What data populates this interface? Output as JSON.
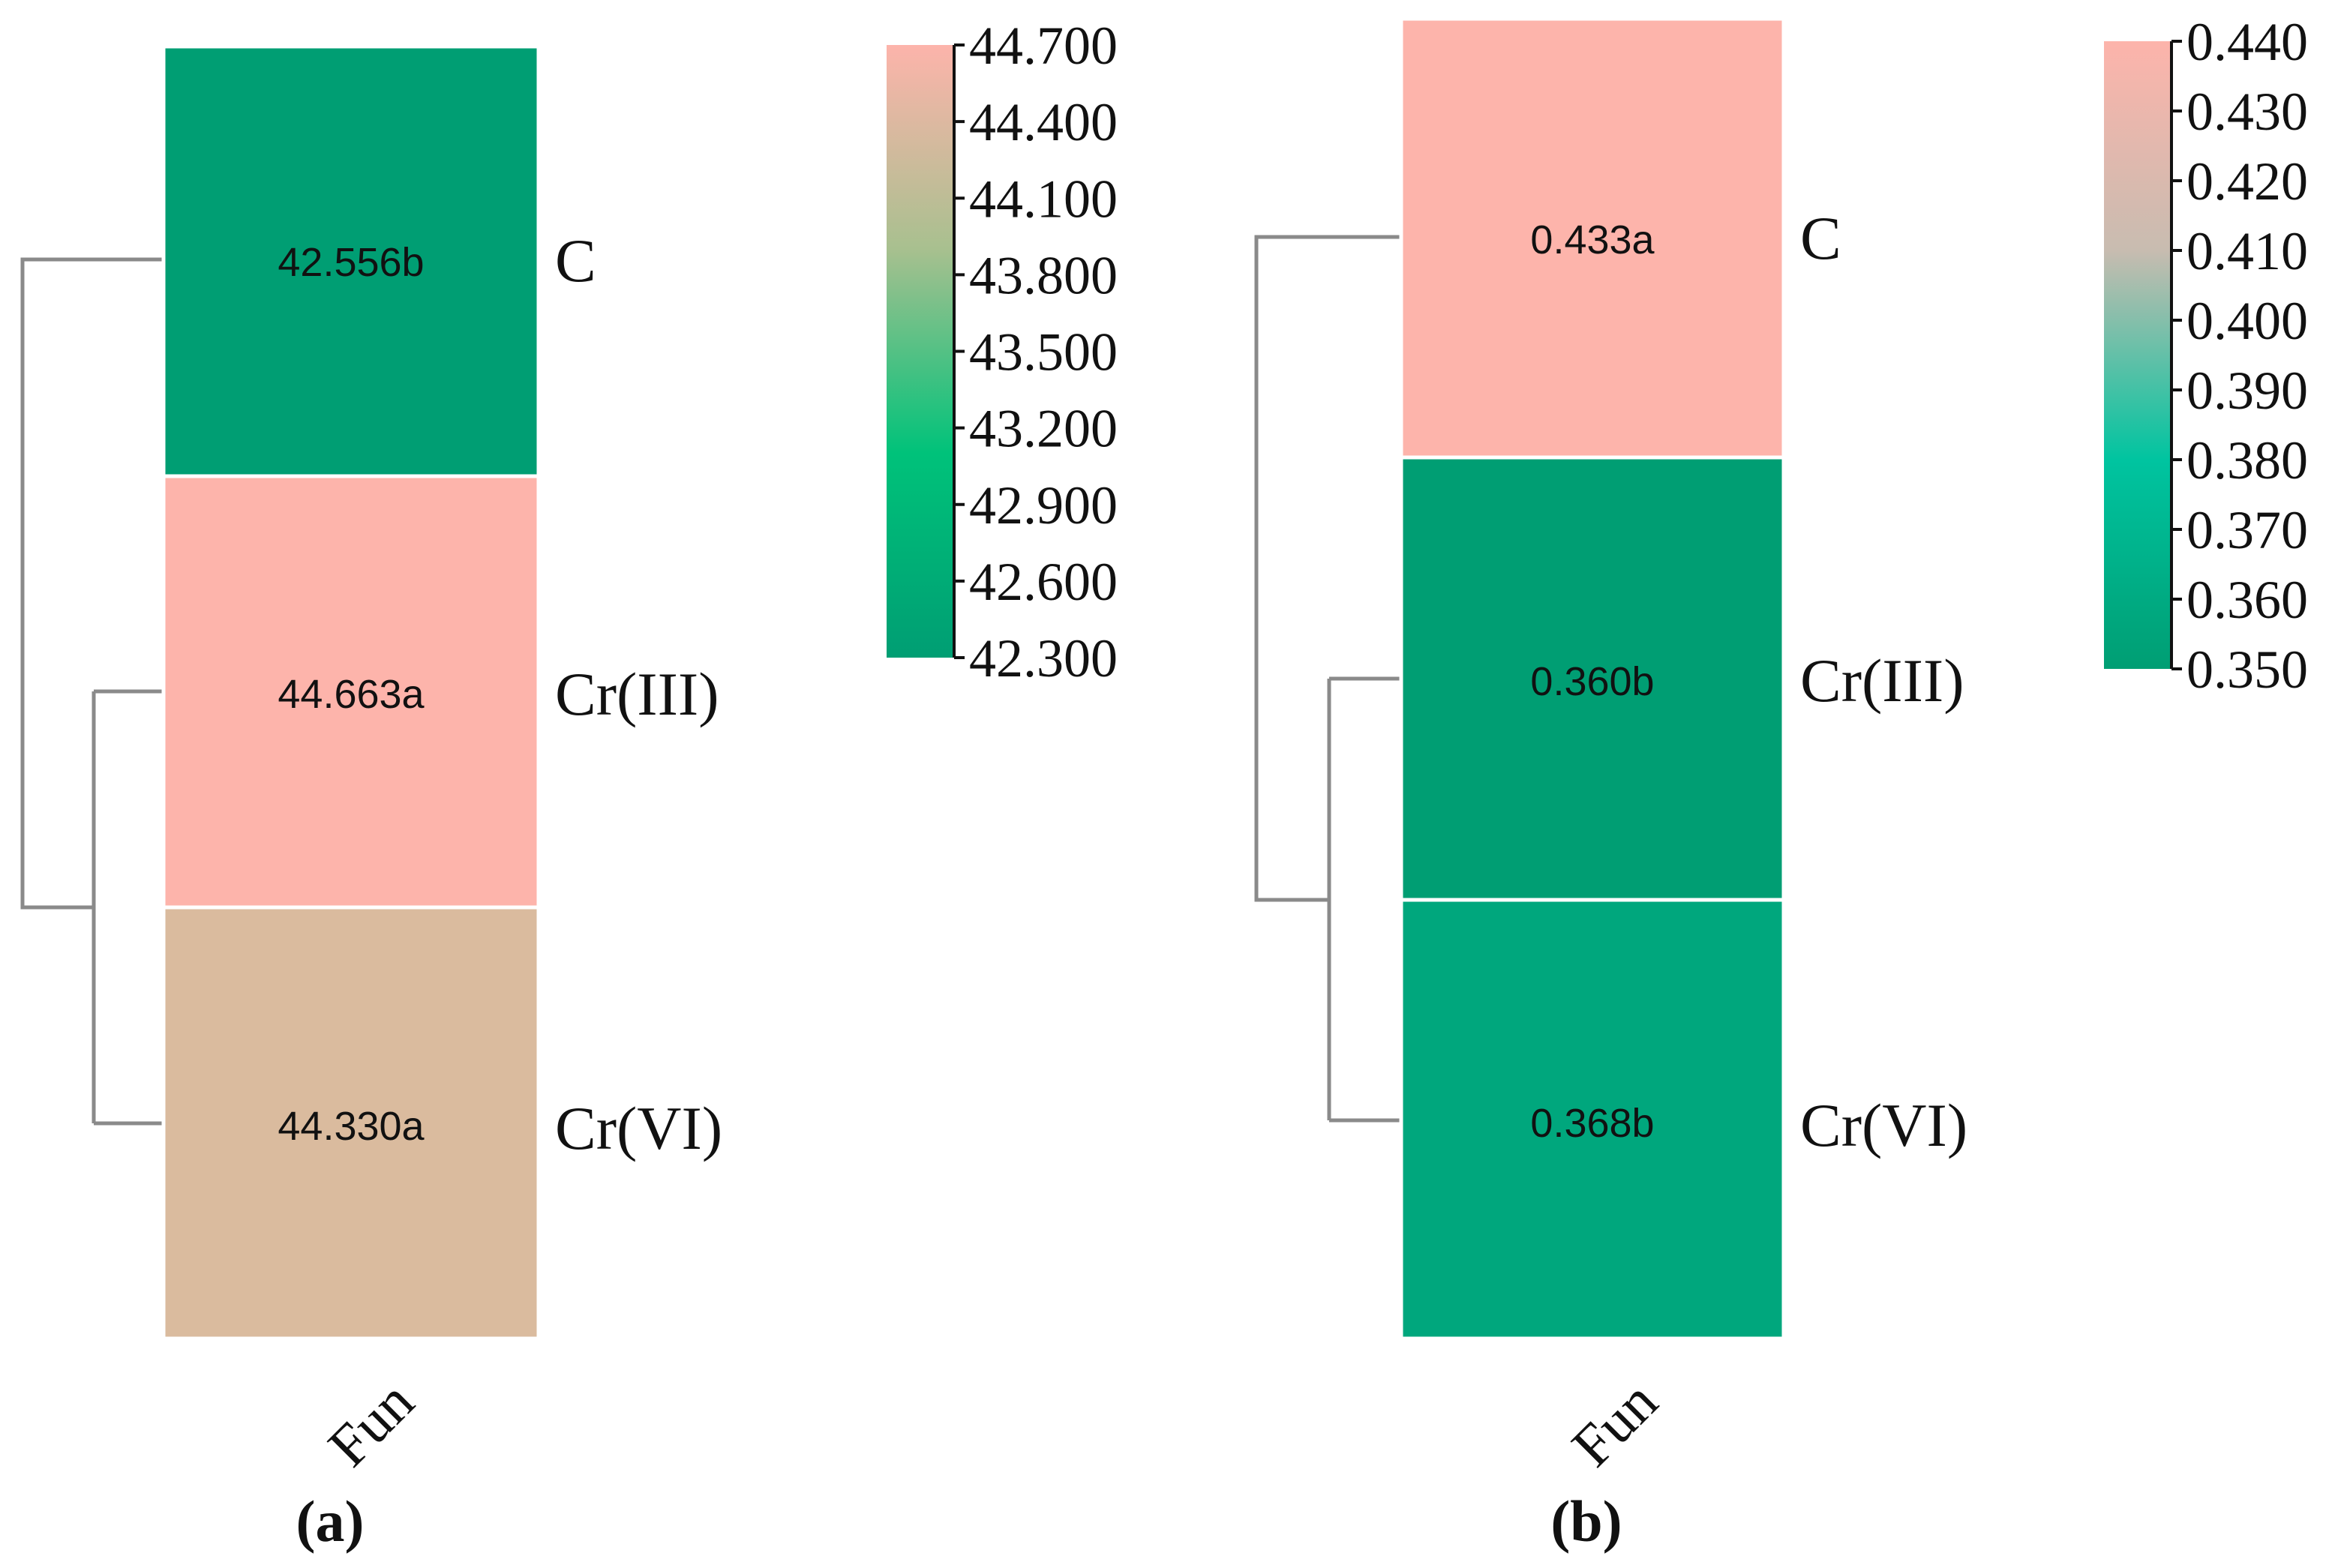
{
  "chart_data": [
    {
      "type": "heatmap",
      "panel_label": "(a)",
      "column_label": "Fun",
      "rows": [
        {
          "label": "C",
          "value": 42.556,
          "annotation": "42.556b",
          "color": "#009E73"
        },
        {
          "label": "Cr(III)",
          "value": 44.663,
          "annotation": "44.663a",
          "color": "#FDB4AB"
        },
        {
          "label": "Cr(VI)",
          "value": 44.33,
          "annotation": "44.330a",
          "color": "#DABB9E"
        }
      ],
      "colorbar": {
        "range": [
          42.3,
          44.7
        ],
        "ticks": [
          "44.700",
          "44.400",
          "44.100",
          "43.800",
          "43.500",
          "43.200",
          "42.900",
          "42.600",
          "42.300"
        ],
        "gradient": [
          "#009E73",
          "#00C27A",
          "#A8C08F",
          "#FDB4AB"
        ]
      },
      "dendrogram": "C | (Cr(III), Cr(VI))"
    },
    {
      "type": "heatmap",
      "panel_label": "(b)",
      "column_label": "Fun",
      "rows": [
        {
          "label": "C",
          "value": 0.433,
          "annotation": "0.433a",
          "color": "#FDB4AB"
        },
        {
          "label": "Cr(III)",
          "value": 0.36,
          "annotation": "0.360b",
          "color": "#009E73"
        },
        {
          "label": "Cr(VI)",
          "value": 0.368,
          "annotation": "0.368b",
          "color": "#00A77D"
        }
      ],
      "colorbar": {
        "range": [
          0.35,
          0.44
        ],
        "ticks": [
          "0.440",
          "0.430",
          "0.420",
          "0.410",
          "0.400",
          "0.390",
          "0.380",
          "0.370",
          "0.360",
          "0.350"
        ],
        "gradient": [
          "#009E73",
          "#00C4A0",
          "#C8BCB0",
          "#FDB4AB"
        ]
      },
      "dendrogram": "C | (Cr(III), Cr(VI))"
    }
  ]
}
